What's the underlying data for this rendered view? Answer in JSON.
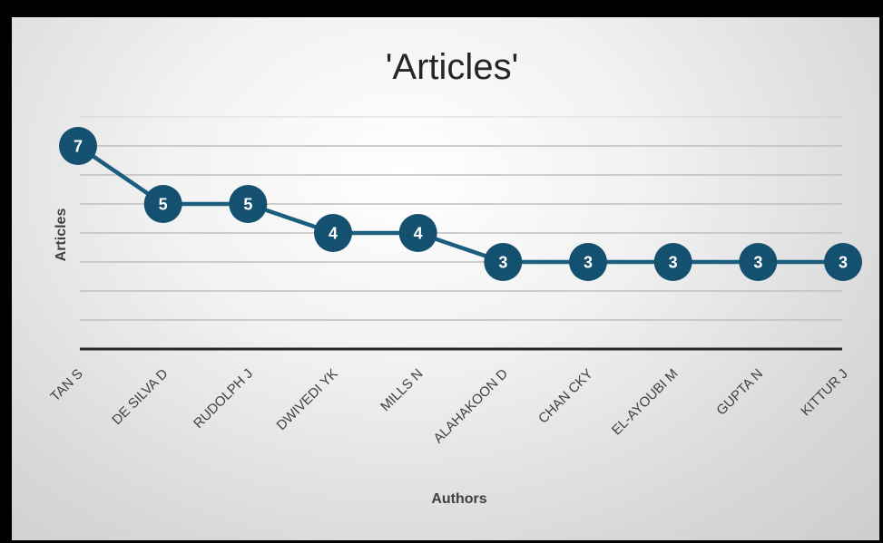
{
  "chart_data": {
    "type": "line",
    "title": "'Articles'",
    "xlabel": "Authors",
    "ylabel": "Articles",
    "categories": [
      "TAN S",
      "DE SILVA D",
      "RUDOLPH J",
      "DWIVEDI YK",
      "MILLS N",
      "ALAHAKOON D",
      "CHAN CKY",
      "EL-AYOUBI M",
      "GUPTA N",
      "KITTUR J"
    ],
    "series": [
      {
        "values": [
          7,
          5,
          5,
          4,
          4,
          3,
          3,
          3,
          3,
          3
        ]
      }
    ],
    "ylim": [
      0,
      8
    ],
    "grid": true,
    "legend": "none",
    "colors": {
      "line": "#1b5d7e",
      "marker": "#14506f",
      "gridline": "#bfbfbf",
      "axis": "#262626"
    }
  }
}
